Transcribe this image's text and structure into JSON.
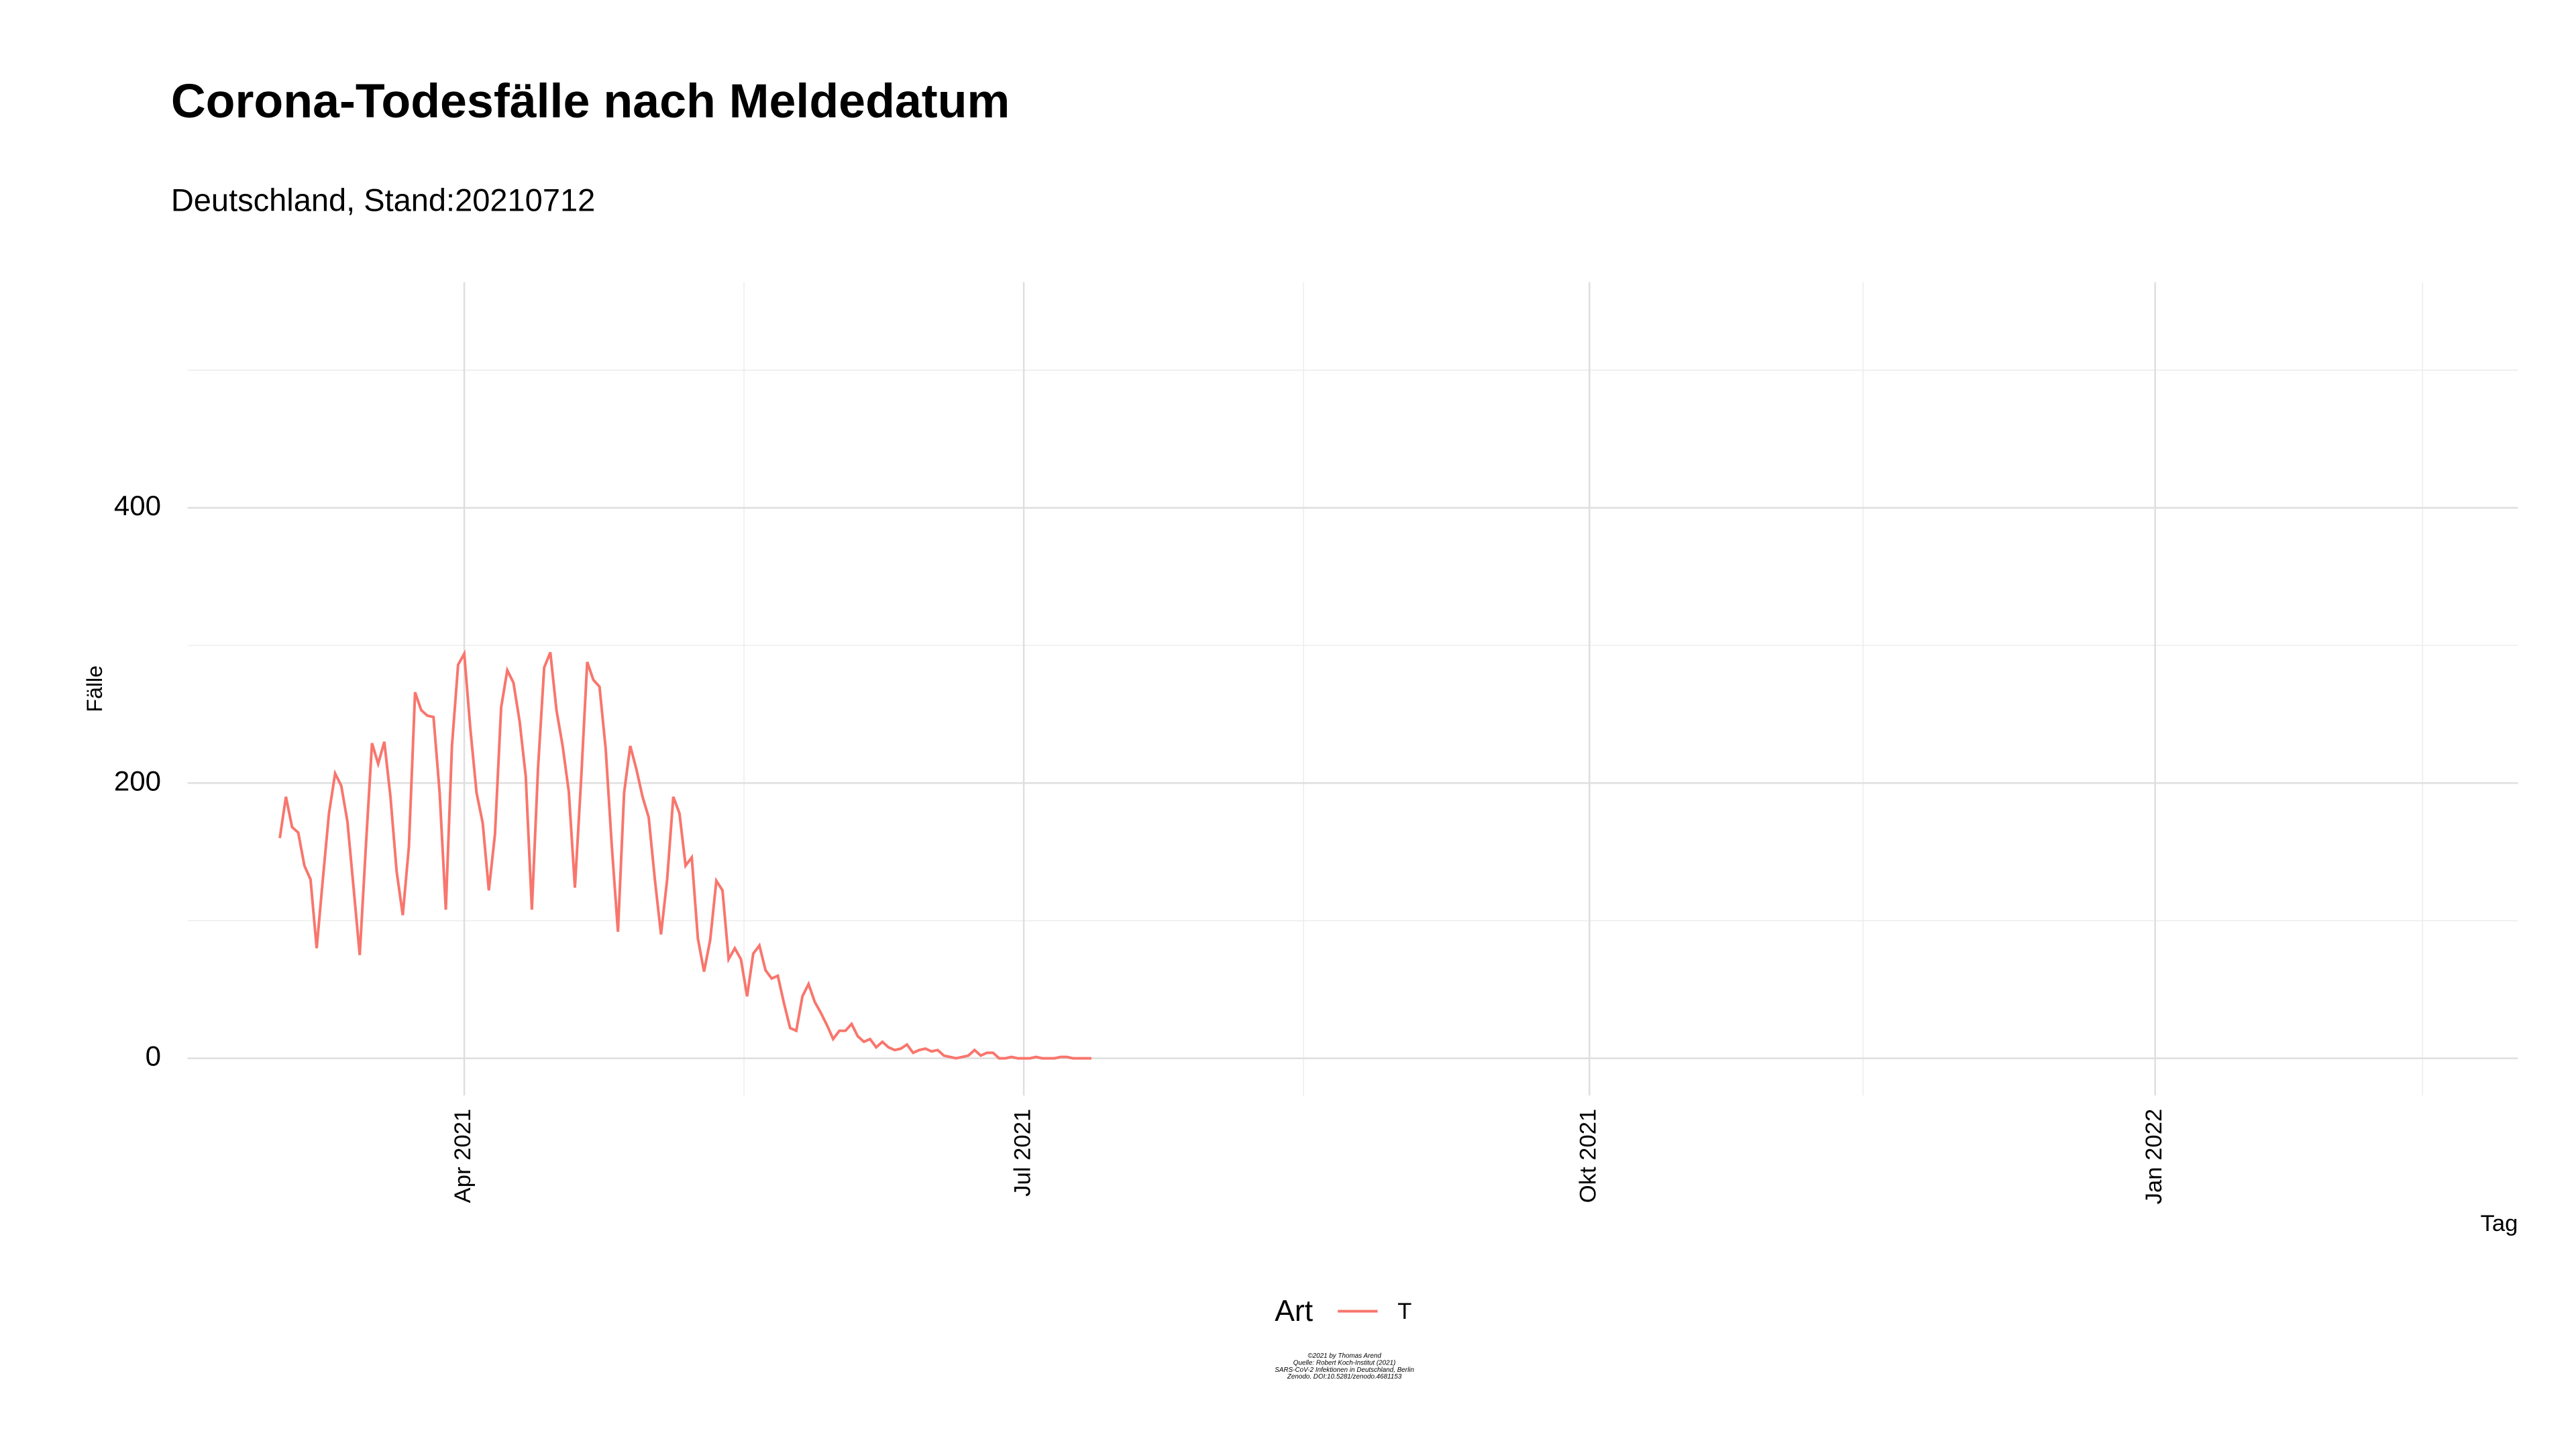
{
  "chart_data": {
    "type": "line",
    "title": "Corona-Todesfälle nach Meldedatum",
    "subtitle": "Deutschland, Stand:20210712",
    "y_label": "Fälle",
    "x_label": "Tag",
    "legend_title": "Art",
    "caption": [
      "©2021 by Thomas Arend",
      "Quelle: Robert Koch-Institut (2021)",
      "SARS-CoV-2 Infektionen in Deutschland, Berlin",
      "Zenodo. DOI:10.5281/zenodo.4681153"
    ],
    "x": [
      "2021-03-02",
      "2021-03-03",
      "2021-03-04",
      "2021-03-05",
      "2021-03-06",
      "2021-03-07",
      "2021-03-08",
      "2021-03-09",
      "2021-03-10",
      "2021-03-11",
      "2021-03-12",
      "2021-03-13",
      "2021-03-14",
      "2021-03-15",
      "2021-03-16",
      "2021-03-17",
      "2021-03-18",
      "2021-03-19",
      "2021-03-20",
      "2021-03-21",
      "2021-03-22",
      "2021-03-23",
      "2021-03-24",
      "2021-03-25",
      "2021-03-26",
      "2021-03-27",
      "2021-03-28",
      "2021-03-29",
      "2021-03-30",
      "2021-03-31",
      "2021-04-01",
      "2021-04-02",
      "2021-04-03",
      "2021-04-04",
      "2021-04-05",
      "2021-04-06",
      "2021-04-07",
      "2021-04-08",
      "2021-04-09",
      "2021-04-10",
      "2021-04-11",
      "2021-04-12",
      "2021-04-13",
      "2021-04-14",
      "2021-04-15",
      "2021-04-16",
      "2021-04-17",
      "2021-04-18",
      "2021-04-19",
      "2021-04-20",
      "2021-04-21",
      "2021-04-22",
      "2021-04-23",
      "2021-04-24",
      "2021-04-25",
      "2021-04-26",
      "2021-04-27",
      "2021-04-28",
      "2021-04-29",
      "2021-04-30",
      "2021-05-01",
      "2021-05-02",
      "2021-05-03",
      "2021-05-04",
      "2021-05-05",
      "2021-05-06",
      "2021-05-07",
      "2021-05-08",
      "2021-05-09",
      "2021-05-10",
      "2021-05-11",
      "2021-05-12",
      "2021-05-13",
      "2021-05-14",
      "2021-05-15",
      "2021-05-16",
      "2021-05-17",
      "2021-05-18",
      "2021-05-19",
      "2021-05-20",
      "2021-05-21",
      "2021-05-22",
      "2021-05-23",
      "2021-05-24",
      "2021-05-25",
      "2021-05-26",
      "2021-05-27",
      "2021-05-28",
      "2021-05-29",
      "2021-05-30",
      "2021-05-31",
      "2021-06-01",
      "2021-06-02",
      "2021-06-03",
      "2021-06-04",
      "2021-06-05",
      "2021-06-06",
      "2021-06-07",
      "2021-06-08",
      "2021-06-09",
      "2021-06-10",
      "2021-06-11",
      "2021-06-12",
      "2021-06-13",
      "2021-06-14",
      "2021-06-15",
      "2021-06-16",
      "2021-06-17",
      "2021-06-18",
      "2021-06-19",
      "2021-06-20",
      "2021-06-21",
      "2021-06-22",
      "2021-06-23",
      "2021-06-24",
      "2021-06-25",
      "2021-06-26",
      "2021-06-27",
      "2021-06-28",
      "2021-06-29",
      "2021-06-30",
      "2021-07-01",
      "2021-07-02",
      "2021-07-03",
      "2021-07-04",
      "2021-07-05",
      "2021-07-06",
      "2021-07-07",
      "2021-07-08",
      "2021-07-09",
      "2021-07-10",
      "2021-07-11",
      "2021-07-12"
    ],
    "series": [
      {
        "name": "T",
        "color": "#f8766d",
        "values": [
          160,
          190,
          168,
          164,
          140,
          130,
          80,
          130,
          178,
          207,
          198,
          172,
          124,
          75,
          154,
          229,
          214,
          230,
          190,
          136,
          104,
          154,
          266,
          253,
          249,
          248,
          193,
          108,
          227,
          286,
          294,
          239,
          193,
          171,
          122,
          163,
          255,
          282,
          273,
          245,
          205,
          108,
          211,
          284,
          295,
          253,
          227,
          194,
          124,
          202,
          288,
          275,
          270,
          225,
          154,
          92,
          193,
          227,
          210,
          190,
          175,
          130,
          90,
          130,
          190,
          178,
          140,
          146,
          87,
          63,
          86,
          129,
          122,
          72,
          80,
          72,
          45,
          76,
          82,
          64,
          58,
          60,
          40,
          22,
          20,
          45,
          54,
          41,
          33,
          24,
          14,
          20,
          20,
          25,
          16,
          12,
          14,
          8,
          12,
          8,
          6,
          7,
          10,
          4,
          6,
          7,
          5,
          6,
          2,
          1,
          0,
          1,
          2,
          6,
          2,
          4,
          4,
          0,
          0,
          1,
          0,
          0,
          0,
          1,
          0,
          0,
          0,
          1,
          1,
          0,
          0,
          0,
          0
        ]
      }
    ],
    "xlim": [
      "2021-02-15",
      "2022-03-01"
    ],
    "xticks": [
      {
        "value": "2021-04-01",
        "label": "Apr 2021"
      },
      {
        "value": "2021-07-01",
        "label": "Jul 2021"
      },
      {
        "value": "2021-10-01",
        "label": "Okt 2021"
      },
      {
        "value": "2022-01-01",
        "label": "Jan 2022"
      }
    ],
    "ylim": [
      -27,
      564
    ],
    "yticks": [
      0,
      200,
      400
    ],
    "grid": true
  }
}
